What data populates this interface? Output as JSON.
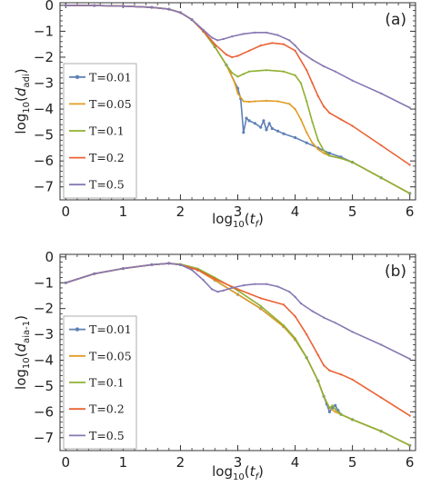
{
  "chart_data": [
    {
      "type": "line",
      "panel_label": "(a)",
      "xlabel": "log10(tf)",
      "ylabel": "log10(dadi)",
      "xlabel_parts": {
        "main": "log",
        "sub": "10",
        "open": "(",
        "var": "t",
        "var_sub": "f",
        "close": ")"
      },
      "ylabel_parts": {
        "main": "log",
        "sub": "10",
        "open": "(",
        "var": "d",
        "var_sub": "adi",
        "close": ")"
      },
      "xlim": [
        -0.1,
        6.1
      ],
      "ylim": [
        -7.5,
        0.1
      ],
      "xticks": [
        0,
        1,
        2,
        3,
        4,
        5,
        6
      ],
      "yticks": [
        0,
        -1,
        -2,
        -3,
        -4,
        -5,
        -6,
        -7
      ],
      "legend_position": "left",
      "series": [
        {
          "name": "T=0.01",
          "color": "#5e81b5",
          "marker": true,
          "x": [
            0,
            0.5,
            1,
            1.5,
            1.8,
            2.0,
            2.2,
            2.4,
            2.6,
            2.8,
            3.0,
            3.05,
            3.1,
            3.15,
            3.2,
            3.3,
            3.4,
            3.45,
            3.5,
            3.55,
            3.6,
            3.7,
            3.8,
            4.0,
            4.2,
            4.4,
            4.6,
            4.8,
            5.0,
            5.5,
            6.0
          ],
          "y": [
            0,
            -0.01,
            -0.03,
            -0.08,
            -0.15,
            -0.28,
            -0.55,
            -1.0,
            -1.6,
            -2.3,
            -3.2,
            -3.6,
            -4.9,
            -4.35,
            -4.45,
            -4.55,
            -4.7,
            -4.45,
            -4.8,
            -4.55,
            -4.75,
            -4.85,
            -4.95,
            -5.1,
            -5.3,
            -5.5,
            -5.7,
            -5.85,
            -6.05,
            -6.65,
            -7.25
          ]
        },
        {
          "name": "T=0.05",
          "color": "#e19c24",
          "marker": false,
          "x": [
            0,
            0.5,
            1,
            1.5,
            1.8,
            2.0,
            2.2,
            2.4,
            2.6,
            2.8,
            2.95,
            3.0,
            3.1,
            3.2,
            3.3,
            3.5,
            3.7,
            3.9,
            4.0,
            4.1,
            4.2,
            4.3,
            4.4,
            4.5,
            4.6,
            4.8,
            5.0,
            5.5,
            6.0
          ],
          "y": [
            0,
            -0.01,
            -0.03,
            -0.08,
            -0.15,
            -0.28,
            -0.55,
            -1.0,
            -1.6,
            -2.3,
            -3.0,
            -3.4,
            -3.7,
            -3.72,
            -3.7,
            -3.68,
            -3.7,
            -3.8,
            -4.0,
            -4.4,
            -4.9,
            -5.3,
            -5.55,
            -5.7,
            -5.8,
            -5.9,
            -6.05,
            -6.65,
            -7.25
          ]
        },
        {
          "name": "T=0.1",
          "color": "#8fb032",
          "marker": false,
          "x": [
            0,
            0.5,
            1,
            1.5,
            1.8,
            2.0,
            2.2,
            2.4,
            2.6,
            2.8,
            2.9,
            3.0,
            3.1,
            3.2,
            3.5,
            3.8,
            4.0,
            4.1,
            4.2,
            4.3,
            4.4,
            4.5,
            4.6,
            4.8,
            5.0,
            5.5,
            6.0
          ],
          "y": [
            0,
            -0.01,
            -0.03,
            -0.08,
            -0.15,
            -0.28,
            -0.55,
            -1.0,
            -1.6,
            -2.3,
            -2.6,
            -2.75,
            -2.65,
            -2.55,
            -2.5,
            -2.55,
            -2.7,
            -3.0,
            -3.7,
            -4.5,
            -5.2,
            -5.6,
            -5.8,
            -5.9,
            -6.05,
            -6.65,
            -7.25
          ]
        },
        {
          "name": "T=0.2",
          "color": "#eb6235",
          "marker": false,
          "x": [
            0,
            0.5,
            1,
            1.5,
            1.8,
            2.0,
            2.2,
            2.4,
            2.6,
            2.8,
            2.9,
            3.0,
            3.2,
            3.4,
            3.6,
            3.8,
            4.0,
            4.2,
            4.3,
            4.4,
            4.5,
            4.6,
            4.8,
            5.0,
            5.5,
            6.0
          ],
          "y": [
            0,
            -0.01,
            -0.03,
            -0.08,
            -0.15,
            -0.28,
            -0.55,
            -1.0,
            -1.5,
            -1.9,
            -2.0,
            -1.95,
            -1.75,
            -1.55,
            -1.45,
            -1.5,
            -1.75,
            -2.5,
            -3.0,
            -3.5,
            -3.9,
            -4.15,
            -4.4,
            -4.65,
            -5.4,
            -6.15
          ]
        },
        {
          "name": "T=0.5",
          "color": "#8778b3",
          "marker": false,
          "x": [
            0,
            0.5,
            1,
            1.5,
            1.8,
            2.0,
            2.2,
            2.4,
            2.55,
            2.65,
            2.75,
            2.9,
            3.1,
            3.3,
            3.5,
            3.7,
            3.9,
            4.0,
            4.1,
            4.3,
            4.5,
            4.7,
            5.0,
            5.5,
            6.0
          ],
          "y": [
            0,
            -0.01,
            -0.03,
            -0.08,
            -0.15,
            -0.28,
            -0.55,
            -0.95,
            -1.25,
            -1.35,
            -1.3,
            -1.2,
            -1.1,
            -1.05,
            -1.05,
            -1.15,
            -1.35,
            -1.55,
            -1.8,
            -2.1,
            -2.35,
            -2.55,
            -2.9,
            -3.4,
            -3.95
          ]
        }
      ]
    },
    {
      "type": "line",
      "panel_label": "(b)",
      "xlabel": "log10(tf)",
      "ylabel": "log10(daia-1)",
      "xlabel_parts": {
        "main": "log",
        "sub": "10",
        "open": "(",
        "var": "t",
        "var_sub": "f",
        "close": ")"
      },
      "ylabel_parts": {
        "main": "log",
        "sub": "10",
        "open": "(",
        "var": "d",
        "var_sub": "aia-1",
        "close": ")"
      },
      "xlim": [
        -0.1,
        6.1
      ],
      "ylim": [
        -7.5,
        0.1
      ],
      "xticks": [
        0,
        1,
        2,
        3,
        4,
        5,
        6
      ],
      "yticks": [
        0,
        -1,
        -2,
        -3,
        -4,
        -5,
        -6,
        -7
      ],
      "legend_position": "left",
      "series": [
        {
          "name": "T=0.01",
          "color": "#5e81b5",
          "marker": true,
          "x": [
            0,
            0.5,
            1.0,
            1.5,
            1.8,
            2.0,
            2.3,
            2.6,
            3.0,
            3.4,
            3.8,
            4.0,
            4.2,
            4.4,
            4.5,
            4.55,
            4.6,
            4.65,
            4.7,
            4.75,
            4.8,
            5.0,
            5.5,
            6.0
          ],
          "y": [
            -1.0,
            -0.65,
            -0.45,
            -0.3,
            -0.25,
            -0.3,
            -0.5,
            -0.9,
            -1.45,
            -2.0,
            -2.7,
            -3.2,
            -3.9,
            -4.8,
            -5.4,
            -5.7,
            -6.0,
            -5.85,
            -5.75,
            -5.95,
            -6.1,
            -6.3,
            -6.75,
            -7.3
          ]
        },
        {
          "name": "T=0.05",
          "color": "#e19c24",
          "marker": false,
          "x": [
            0,
            0.5,
            1.0,
            1.5,
            1.8,
            2.0,
            2.3,
            2.6,
            3.0,
            3.4,
            3.8,
            4.0,
            4.2,
            4.4,
            4.5,
            4.6,
            4.7,
            4.8,
            5.0,
            5.5,
            6.0
          ],
          "y": [
            -1.0,
            -0.65,
            -0.45,
            -0.3,
            -0.25,
            -0.3,
            -0.5,
            -0.9,
            -1.45,
            -2.0,
            -2.7,
            -3.2,
            -3.9,
            -4.8,
            -5.4,
            -5.85,
            -6.0,
            -6.1,
            -6.3,
            -6.75,
            -7.3
          ]
        },
        {
          "name": "T=0.1",
          "color": "#8fb032",
          "marker": false,
          "x": [
            0,
            0.5,
            1.0,
            1.5,
            1.8,
            2.0,
            2.3,
            2.6,
            3.0,
            3.4,
            3.8,
            4.0,
            4.2,
            4.4,
            4.5,
            4.6,
            4.65,
            4.7,
            4.8,
            5.0,
            5.5,
            6.0
          ],
          "y": [
            -1.0,
            -0.65,
            -0.45,
            -0.3,
            -0.25,
            -0.28,
            -0.45,
            -0.8,
            -1.3,
            -1.9,
            -2.65,
            -3.15,
            -3.9,
            -4.8,
            -5.4,
            -5.85,
            -5.75,
            -5.9,
            -6.1,
            -6.3,
            -6.75,
            -7.3
          ]
        },
        {
          "name": "T=0.2",
          "color": "#eb6235",
          "marker": false,
          "x": [
            0,
            0.5,
            1.0,
            1.5,
            1.8,
            2.0,
            2.3,
            2.6,
            3.0,
            3.4,
            3.8,
            4.0,
            4.2,
            4.4,
            4.5,
            4.6,
            4.8,
            5.0,
            5.5,
            6.0
          ],
          "y": [
            -1.0,
            -0.65,
            -0.45,
            -0.3,
            -0.25,
            -0.3,
            -0.5,
            -0.85,
            -1.25,
            -1.6,
            -1.85,
            -2.3,
            -3.0,
            -3.8,
            -4.2,
            -4.4,
            -4.55,
            -4.75,
            -5.45,
            -6.15
          ]
        },
        {
          "name": "T=0.5",
          "color": "#8778b3",
          "marker": false,
          "x": [
            0,
            0.5,
            1.0,
            1.5,
            1.8,
            2.0,
            2.2,
            2.4,
            2.55,
            2.65,
            2.75,
            2.9,
            3.1,
            3.3,
            3.5,
            3.7,
            3.9,
            4.0,
            4.1,
            4.3,
            4.5,
            4.7,
            5.0,
            5.5,
            6.0
          ],
          "y": [
            -1.0,
            -0.65,
            -0.45,
            -0.3,
            -0.25,
            -0.3,
            -0.5,
            -0.9,
            -1.25,
            -1.35,
            -1.3,
            -1.2,
            -1.1,
            -1.05,
            -1.05,
            -1.15,
            -1.35,
            -1.55,
            -1.8,
            -2.1,
            -2.35,
            -2.55,
            -2.9,
            -3.4,
            -3.95
          ]
        }
      ]
    }
  ]
}
